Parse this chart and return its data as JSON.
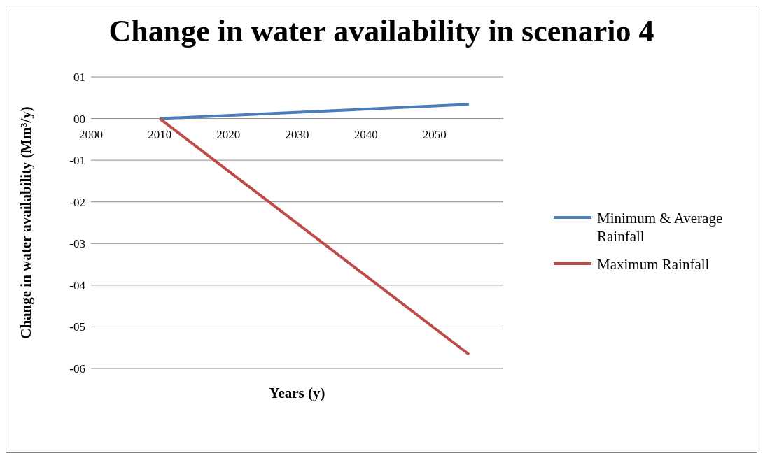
{
  "chart_data": {
    "type": "line",
    "title": "Change in water availability in scenario 4",
    "xlabel": "Years (y)",
    "ylabel": "Change in water availability (Mm³/y)",
    "x": [
      2010,
      2055
    ],
    "xlim": [
      2000,
      2060
    ],
    "xticks": [
      2000,
      2010,
      2020,
      2030,
      2040,
      2050
    ],
    "ylim": [
      -6,
      1
    ],
    "yticks": [
      {
        "value": 1,
        "label": "01"
      },
      {
        "value": 0,
        "label": "00"
      },
      {
        "value": -1,
        "label": "-01"
      },
      {
        "value": -2,
        "label": "-02"
      },
      {
        "value": -3,
        "label": "-03"
      },
      {
        "value": -4,
        "label": "-04"
      },
      {
        "value": -5,
        "label": "-05"
      },
      {
        "value": -6,
        "label": "-06"
      }
    ],
    "grid": "y",
    "legend": "right",
    "marker": "none",
    "line_style": "solid",
    "series": [
      {
        "name": "Minimum & Average Rainfall",
        "color": "#4a7ebb",
        "values": [
          0,
          0.34
        ]
      },
      {
        "name": "Maximum Rainfall",
        "color": "#be4b48",
        "values": [
          0,
          -5.66
        ]
      }
    ]
  }
}
